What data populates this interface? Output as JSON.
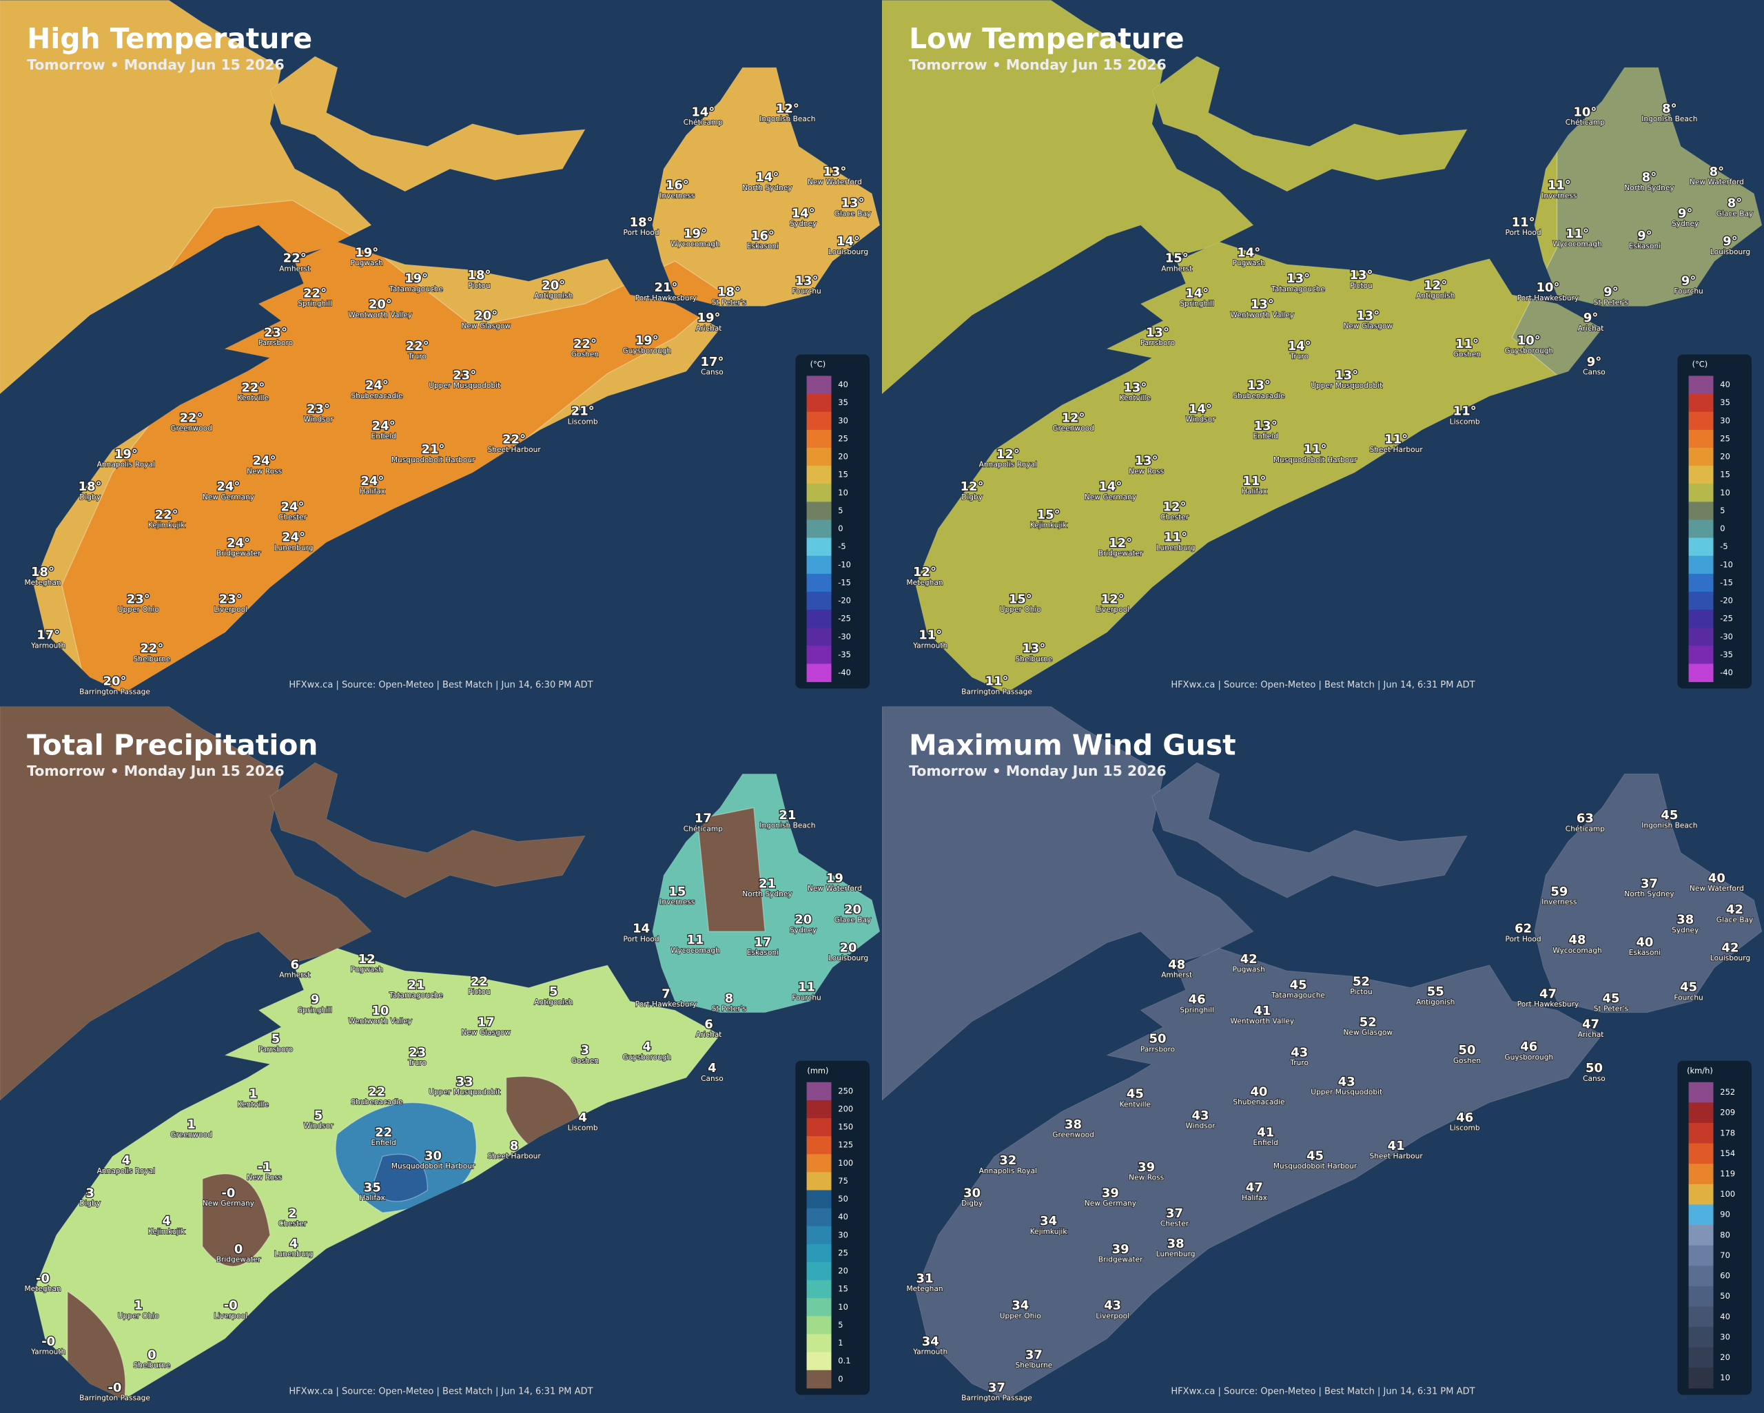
{
  "stations": [
    "Chéticamp",
    "Ingonish Beach",
    "Inverness",
    "North Sydney",
    "New Waterford",
    "Glace Bay",
    "Sydney",
    "Louisbourg",
    "Port Hood",
    "Wycocomagh",
    "Eskasoni",
    "Fourchu",
    "Amherst",
    "Pugwash",
    "Tatamagouche",
    "Pictou",
    "Antigonish",
    "Port Hawkesbury",
    "St Peter's",
    "Arichat",
    "Springhill",
    "Wentworth Valley",
    "New Glasgow",
    "Parrsboro",
    "Truro",
    "Goshen",
    "Guysborough",
    "Canso",
    "Kentville",
    "Shubenacadie",
    "Upper Musquodobit",
    "Windsor",
    "Liscomb",
    "Greenwood",
    "Enfield",
    "Musquodoboit Harbour",
    "Sheet Harbour",
    "Annapolis Royal",
    "New Ross",
    "Digby",
    "Halifax",
    "New Germany",
    "Chester",
    "Kejimkujik",
    "Bridgewater",
    "Lunenburg",
    "Meteghan",
    "Upper Ohio",
    "Liverpool",
    "Yarmouth",
    "Shelburne",
    "Barrington Passage"
  ],
  "panels": [
    {
      "title": "High Temperature",
      "subtitle": "Tomorrow • Monday Jun 15 2026",
      "legend": {
        "unit": "(°C)",
        "ticks": [
          40,
          35,
          30,
          25,
          20,
          15,
          10,
          5,
          0,
          -5,
          -10,
          -15,
          -20,
          -25,
          -30,
          -35,
          -40
        ]
      },
      "values": [
        "14°",
        "12°",
        "16°",
        "14°",
        "13°",
        "13°",
        "14°",
        "14°",
        "18°",
        "19°",
        "16°",
        "13°",
        "22°",
        "19°",
        "19°",
        "18°",
        "20°",
        "21°",
        "18°",
        "19°",
        "22°",
        "20°",
        "20°",
        "23°",
        "22°",
        "22°",
        "19°",
        "17°",
        "22°",
        "24°",
        "23°",
        "23°",
        "21°",
        "22°",
        "24°",
        "21°",
        "22°",
        "19°",
        "24°",
        "18°",
        "24°",
        "24°",
        "24°",
        "22°",
        "24°",
        "24°",
        "18°",
        "23°",
        "23°",
        "17°",
        "22°",
        "20°"
      ],
      "credit": "HFXwx.ca | Source: Open-Meteo | Best Match | Jun 14, 6:30 PM ADT"
    },
    {
      "title": "Low Temperature",
      "subtitle": "Tomorrow • Monday Jun 15 2026",
      "legend": {
        "unit": "(°C)",
        "ticks": [
          40,
          35,
          30,
          25,
          20,
          15,
          10,
          5,
          0,
          -5,
          -10,
          -15,
          -20,
          -25,
          -30,
          -35,
          -40
        ]
      },
      "values": [
        "10°",
        "8°",
        "11°",
        "8°",
        "8°",
        "8°",
        "9°",
        "9°",
        "11°",
        "11°",
        "9°",
        "9°",
        "15°",
        "14°",
        "13°",
        "13°",
        "12°",
        "10°",
        "9°",
        "9°",
        "14°",
        "13°",
        "13°",
        "13°",
        "14°",
        "11°",
        "10°",
        "9°",
        "13°",
        "13°",
        "13°",
        "14°",
        "11°",
        "12°",
        "13°",
        "11°",
        "11°",
        "12°",
        "13°",
        "12°",
        "11°",
        "14°",
        "12°",
        "15°",
        "12°",
        "11°",
        "12°",
        "15°",
        "12°",
        "11°",
        "13°",
        "11°"
      ],
      "credit": "HFXwx.ca | Source: Open-Meteo | Best Match | Jun 14, 6:31 PM ADT"
    },
    {
      "title": "Total Precipitation",
      "subtitle": "Tomorrow • Monday Jun 15 2026",
      "legend": {
        "unit": "(mm)",
        "ticks": [
          250,
          200,
          150,
          125,
          100,
          75,
          50,
          40,
          30,
          25,
          20,
          15,
          10,
          5,
          1,
          0.1,
          0
        ]
      },
      "values": [
        "17",
        "21",
        "15",
        "21",
        "19",
        "20",
        "20",
        "20",
        "14",
        "11",
        "17",
        "11",
        "6",
        "12",
        "21",
        "22",
        "5",
        "7",
        "8",
        "6",
        "9",
        "10",
        "17",
        "5",
        "23",
        "3",
        "4",
        "4",
        "1",
        "22",
        "33",
        "5",
        "4",
        "1",
        "22",
        "30",
        "8",
        "4",
        "-1",
        "3",
        "35",
        "-0",
        "2",
        "4",
        "0",
        "4",
        "-0",
        "1",
        "-0",
        "-0",
        "0",
        "-0"
      ],
      "credit": "HFXwx.ca | Source: Open-Meteo | Best Match | Jun 14, 6:31 PM ADT"
    },
    {
      "title": "Maximum Wind Gust",
      "subtitle": "Tomorrow • Monday Jun 15 2026",
      "legend": {
        "unit": "(km/h)",
        "ticks": [
          252,
          209,
          178,
          154,
          119,
          100,
          90,
          80,
          70,
          60,
          50,
          40,
          30,
          20,
          10
        ]
      },
      "values": [
        "63",
        "45",
        "59",
        "37",
        "40",
        "42",
        "38",
        "42",
        "62",
        "48",
        "40",
        "45",
        "48",
        "42",
        "45",
        "52",
        "55",
        "47",
        "45",
        "47",
        "46",
        "41",
        "52",
        "50",
        "43",
        "50",
        "46",
        "50",
        "45",
        "40",
        "43",
        "43",
        "46",
        "38",
        "41",
        "45",
        "41",
        "32",
        "39",
        "30",
        "47",
        "39",
        "37",
        "34",
        "39",
        "38",
        "31",
        "34",
        "43",
        "34",
        "37",
        "37"
      ],
      "credit": "HFXwx.ca | Source: Open-Meteo | Best Match | Jun 14, 6:31 PM ADT"
    }
  ]
}
